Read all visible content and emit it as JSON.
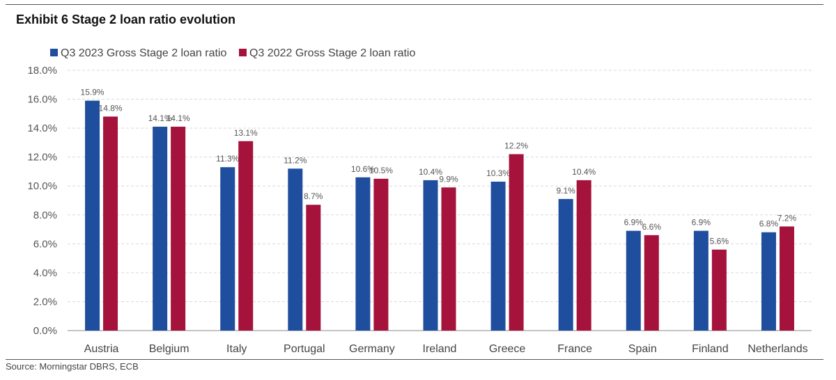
{
  "header": {
    "title": "Exhibit 6 Stage 2 loan ratio evolution"
  },
  "footer": {
    "source": "Source: Morningstar DBRS, ECB"
  },
  "colors": {
    "series1": "#1f4e9e",
    "series2": "#a5123b",
    "grid": "#d9d9d9"
  },
  "chart_data": {
    "type": "bar",
    "title": "Exhibit 6 Stage 2 loan ratio evolution",
    "xlabel": "",
    "ylabel": "",
    "ylim": [
      0,
      18
    ],
    "yticks": [
      "0.0%",
      "2.0%",
      "4.0%",
      "6.0%",
      "8.0%",
      "10.0%",
      "12.0%",
      "14.0%",
      "16.0%",
      "18.0%"
    ],
    "grid": true,
    "legend": "top-left",
    "categories": [
      "Austria",
      "Belgium",
      "Italy",
      "Portugal",
      "Germany",
      "Ireland",
      "Greece",
      "France",
      "Spain",
      "Finland",
      "Netherlands"
    ],
    "series": [
      {
        "name": "Q3 2023 Gross Stage 2 loan ratio",
        "color": "#1f4e9e",
        "values": [
          15.9,
          14.1,
          11.3,
          11.2,
          10.6,
          10.4,
          10.3,
          9.1,
          6.9,
          6.9,
          6.8
        ],
        "labels": [
          "15.9%",
          "14.1%",
          "11.3%",
          "11.2%",
          "10.6%",
          "10.4%",
          "10.3%",
          "9.1%",
          "6.9%",
          "6.9%",
          "6.8%"
        ]
      },
      {
        "name": "Q3 2022 Gross Stage 2 loan ratio",
        "color": "#a5123b",
        "values": [
          14.8,
          14.1,
          13.1,
          8.7,
          10.5,
          9.9,
          12.2,
          10.4,
          6.6,
          5.6,
          7.2
        ],
        "labels": [
          "14.8%",
          "14.1%",
          "13.1%",
          "8.7%",
          "10.5%",
          "9.9%",
          "12.2%",
          "10.4%",
          "6.6%",
          "5.6%",
          "7.2%"
        ]
      }
    ]
  }
}
